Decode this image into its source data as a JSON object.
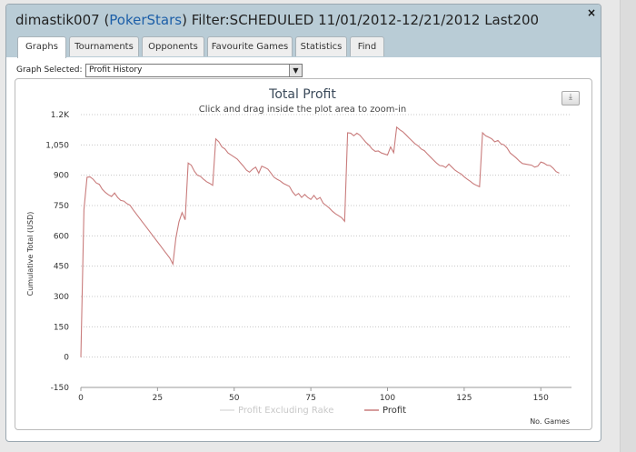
{
  "window": {
    "title_user": "dimastik007 (",
    "title_site": "PokerStars",
    "title_rest": ") Filter:SCHEDULED 11/01/2012-12/21/2012 Last200",
    "close_label": "×"
  },
  "tabs": [
    {
      "label": "Graphs",
      "active": true
    },
    {
      "label": "Tournaments",
      "active": false
    },
    {
      "label": "Opponents",
      "active": false
    },
    {
      "label": "Favourite Games",
      "active": false
    },
    {
      "label": "Statistics",
      "active": false
    },
    {
      "label": "Find",
      "active": false
    }
  ],
  "graph_select": {
    "label": "Graph Selected:",
    "value": "Profit History"
  },
  "export_icon_glyph": "⤓",
  "chart_data": {
    "type": "line",
    "title": "Total Profit",
    "subtitle": "Click and drag inside the plot area to zoom-in",
    "xlabel": "No. Games",
    "ylabel": "Cumulative Total (USD)",
    "xlim": [
      0,
      160
    ],
    "ylim": [
      -150,
      1200
    ],
    "x_ticks": [
      "0",
      "25",
      "50",
      "75",
      "100",
      "125",
      "150"
    ],
    "y_ticks": [
      "-150",
      "0",
      "150",
      "300",
      "450",
      "600",
      "750",
      "900",
      "1,050",
      "1.2K"
    ],
    "grid": true,
    "legend_position": "bottom-center",
    "legend": [
      {
        "name": "Profit Excluding Rake",
        "color": "#dddddd"
      },
      {
        "name": "Profit",
        "color": "#c97c7c"
      }
    ],
    "series": [
      {
        "name": "Profit",
        "color": "#c97c7c",
        "points": [
          [
            0,
            0
          ],
          [
            1,
            730
          ],
          [
            2,
            890
          ],
          [
            3,
            892
          ],
          [
            4,
            880
          ],
          [
            5,
            862
          ],
          [
            6,
            855
          ],
          [
            7,
            830
          ],
          [
            8,
            815
          ],
          [
            9,
            803
          ],
          [
            10,
            795
          ],
          [
            11,
            812
          ],
          [
            12,
            790
          ],
          [
            13,
            775
          ],
          [
            14,
            772
          ],
          [
            15,
            760
          ],
          [
            16,
            752
          ],
          [
            17,
            730
          ],
          [
            18,
            710
          ],
          [
            19,
            690
          ],
          [
            20,
            670
          ],
          [
            21,
            650
          ],
          [
            22,
            630
          ],
          [
            23,
            610
          ],
          [
            24,
            590
          ],
          [
            25,
            570
          ],
          [
            26,
            550
          ],
          [
            27,
            530
          ],
          [
            28,
            510
          ],
          [
            29,
            490
          ],
          [
            30,
            460
          ],
          [
            31,
            590
          ],
          [
            32,
            670
          ],
          [
            33,
            715
          ],
          [
            34,
            680
          ],
          [
            35,
            960
          ],
          [
            36,
            950
          ],
          [
            37,
            920
          ],
          [
            38,
            900
          ],
          [
            39,
            895
          ],
          [
            40,
            880
          ],
          [
            41,
            868
          ],
          [
            42,
            860
          ],
          [
            43,
            850
          ],
          [
            44,
            1080
          ],
          [
            45,
            1065
          ],
          [
            46,
            1040
          ],
          [
            47,
            1030
          ],
          [
            48,
            1010
          ],
          [
            49,
            1000
          ],
          [
            50,
            990
          ],
          [
            51,
            980
          ],
          [
            52,
            962
          ],
          [
            53,
            945
          ],
          [
            54,
            925
          ],
          [
            55,
            915
          ],
          [
            56,
            930
          ],
          [
            57,
            940
          ],
          [
            58,
            910
          ],
          [
            59,
            945
          ],
          [
            60,
            938
          ],
          [
            61,
            930
          ],
          [
            62,
            910
          ],
          [
            63,
            890
          ],
          [
            64,
            880
          ],
          [
            65,
            872
          ],
          [
            66,
            860
          ],
          [
            67,
            852
          ],
          [
            68,
            845
          ],
          [
            69,
            818
          ],
          [
            70,
            800
          ],
          [
            71,
            810
          ],
          [
            72,
            790
          ],
          [
            73,
            805
          ],
          [
            74,
            790
          ],
          [
            75,
            780
          ],
          [
            76,
            800
          ],
          [
            77,
            780
          ],
          [
            78,
            790
          ],
          [
            79,
            762
          ],
          [
            80,
            750
          ],
          [
            81,
            738
          ],
          [
            82,
            722
          ],
          [
            83,
            710
          ],
          [
            84,
            700
          ],
          [
            85,
            690
          ],
          [
            86,
            672
          ],
          [
            87,
            1110
          ],
          [
            88,
            1108
          ],
          [
            89,
            1095
          ],
          [
            90,
            1108
          ],
          [
            91,
            1098
          ],
          [
            92,
            1080
          ],
          [
            93,
            1062
          ],
          [
            94,
            1048
          ],
          [
            95,
            1030
          ],
          [
            96,
            1018
          ],
          [
            97,
            1020
          ],
          [
            98,
            1010
          ],
          [
            99,
            1005
          ],
          [
            100,
            1000
          ],
          [
            101,
            1040
          ],
          [
            102,
            1012
          ],
          [
            103,
            1138
          ],
          [
            104,
            1125
          ],
          [
            105,
            1115
          ],
          [
            106,
            1100
          ],
          [
            107,
            1085
          ],
          [
            108,
            1070
          ],
          [
            109,
            1055
          ],
          [
            110,
            1045
          ],
          [
            111,
            1030
          ],
          [
            112,
            1022
          ],
          [
            113,
            1005
          ],
          [
            114,
            990
          ],
          [
            115,
            975
          ],
          [
            116,
            960
          ],
          [
            117,
            948
          ],
          [
            118,
            946
          ],
          [
            119,
            938
          ],
          [
            120,
            955
          ],
          [
            121,
            940
          ],
          [
            122,
            925
          ],
          [
            123,
            915
          ],
          [
            124,
            906
          ],
          [
            125,
            892
          ],
          [
            126,
            880
          ],
          [
            127,
            870
          ],
          [
            128,
            858
          ],
          [
            129,
            850
          ],
          [
            130,
            843
          ],
          [
            131,
            1110
          ],
          [
            132,
            1095
          ],
          [
            133,
            1088
          ],
          [
            134,
            1080
          ],
          [
            135,
            1065
          ],
          [
            136,
            1072
          ],
          [
            137,
            1055
          ],
          [
            138,
            1050
          ],
          [
            139,
            1035
          ],
          [
            140,
            1010
          ],
          [
            141,
            998
          ],
          [
            142,
            985
          ],
          [
            143,
            970
          ],
          [
            144,
            958
          ],
          [
            145,
            955
          ],
          [
            146,
            952
          ],
          [
            147,
            950
          ],
          [
            148,
            940
          ],
          [
            149,
            945
          ],
          [
            150,
            965
          ],
          [
            151,
            960
          ],
          [
            152,
            950
          ],
          [
            153,
            948
          ],
          [
            154,
            935
          ],
          [
            155,
            918
          ],
          [
            156,
            910
          ]
        ]
      }
    ]
  }
}
